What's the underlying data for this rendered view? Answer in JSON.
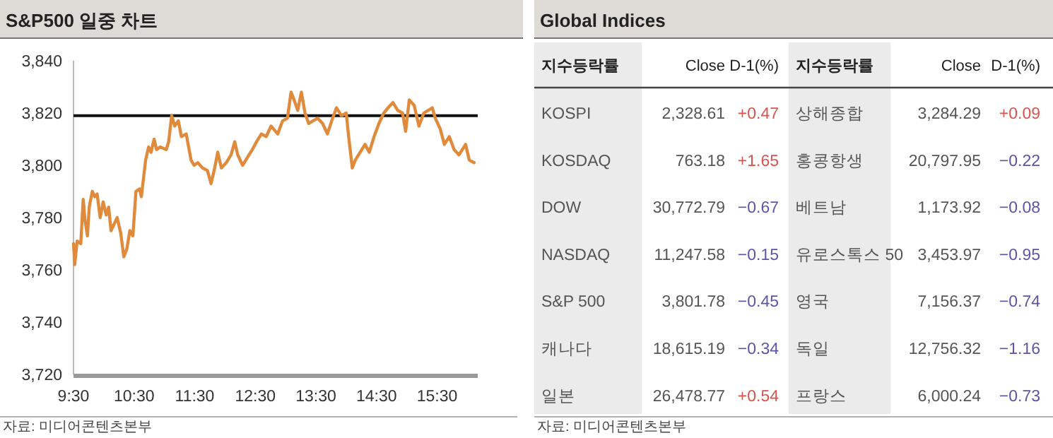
{
  "chart_data": [
    {
      "type": "line",
      "title": "S&P500 일중 차트",
      "x": [
        9.5,
        9.52,
        9.56,
        9.62,
        9.66,
        9.69,
        9.73,
        9.76,
        9.81,
        9.85,
        9.89,
        9.94,
        9.99,
        10.04,
        10.08,
        10.12,
        10.16,
        10.22,
        10.28,
        10.33,
        10.38,
        10.43,
        10.48,
        10.53,
        10.59,
        10.62,
        10.69,
        10.74,
        10.78,
        10.83,
        10.87,
        10.93,
        11.03,
        11.07,
        11.12,
        11.17,
        11.23,
        11.28,
        11.36,
        11.44,
        11.49,
        11.55,
        11.63,
        11.71,
        11.77,
        11.83,
        11.88,
        11.94,
        12.02,
        12.1,
        12.16,
        12.21,
        12.29,
        12.37,
        12.45,
        12.52,
        12.6,
        12.68,
        12.76,
        12.87,
        12.95,
        13.03,
        13.09,
        13.14,
        13.2,
        13.26,
        13.32,
        13.38,
        13.45,
        13.53,
        13.61,
        13.69,
        13.76,
        13.84,
        13.92,
        14.0,
        14.04,
        14.1,
        14.15,
        14.23,
        14.31,
        14.38,
        14.46,
        14.54,
        14.62,
        14.69,
        14.77,
        14.85,
        14.93,
        14.98,
        15.04,
        15.12,
        15.2,
        15.28,
        15.35,
        15.42,
        15.47,
        15.55,
        15.62,
        15.7,
        15.78,
        15.86,
        15.97,
        16.03,
        16.11
      ],
      "series": [
        {
          "color": "#e08a3c",
          "values": [
            3770,
            3762,
            3771,
            3770,
            3787,
            3779,
            3773,
            3784,
            3790,
            3788,
            3789,
            3780,
            3786,
            3781,
            3784,
            3775,
            3777,
            3780,
            3774,
            3765,
            3768,
            3775,
            3773,
            3790,
            3791,
            3788,
            3802,
            3807,
            3805,
            3810,
            3806,
            3807,
            3806,
            3809,
            3819,
            3815,
            3817,
            3811,
            3812,
            3802,
            3800,
            3801,
            3799,
            3798,
            3793,
            3799,
            3805,
            3799,
            3801,
            3804,
            3809,
            3804,
            3800,
            3803,
            3806,
            3809,
            3812,
            3811,
            3815,
            3812,
            3817,
            3818,
            3828,
            3825,
            3821,
            3828,
            3820,
            3816,
            3817,
            3818,
            3816,
            3812,
            3817,
            3822,
            3819,
            3820,
            3811,
            3799,
            3802,
            3805,
            3808,
            3805,
            3811,
            3816,
            3820,
            3822,
            3824,
            3821,
            3820,
            3813,
            3825,
            3823,
            3815,
            3820,
            3821,
            3822,
            3818,
            3814,
            3808,
            3811,
            3806,
            3804,
            3808,
            3802,
            3801
          ]
        }
      ],
      "xlim": [
        9.5,
        16.17
      ],
      "xticks": [
        {
          "value": 9.5,
          "label": "9:30"
        },
        {
          "value": 10.5,
          "label": "10:30"
        },
        {
          "value": 11.5,
          "label": "11:30"
        },
        {
          "value": 12.5,
          "label": "12:30"
        },
        {
          "value": 13.5,
          "label": "13:30"
        },
        {
          "value": 14.5,
          "label": "14:30"
        },
        {
          "value": 15.5,
          "label": "15:30"
        }
      ],
      "ylim": [
        3720,
        3840
      ],
      "yticks": [
        {
          "value": 3720,
          "label": "3,720"
        },
        {
          "value": 3740,
          "label": "3,740"
        },
        {
          "value": 3760,
          "label": "3,760"
        },
        {
          "value": 3780,
          "label": "3,780"
        },
        {
          "value": 3800,
          "label": "3,800"
        },
        {
          "value": 3820,
          "label": "3,820"
        },
        {
          "value": 3840,
          "label": "3,840"
        }
      ],
      "ref_lines": [
        {
          "axis": "y",
          "value": 3819,
          "color": "#111111"
        }
      ],
      "annotations": [
        "자료: 미디어콘텐츠본부"
      ]
    },
    {
      "type": "other",
      "title": "Global Indices",
      "categories": [
        "지수등락률",
        "Close",
        "D-1(%)",
        "지수등락률",
        "Close",
        "D-1(%)"
      ],
      "cell_labels": [
        [
          "KOSPI",
          "2,328.61",
          "+0.47",
          "상해종합",
          "3,284.29",
          "+0.09"
        ],
        [
          "KOSDAQ",
          "763.18",
          "+1.65",
          "홍콩항생",
          "20,797.95",
          "−0.22"
        ],
        [
          "DOW",
          "30,772.79",
          "−0.67",
          "베트남",
          "1,173.92",
          "−0.08"
        ],
        [
          "NASDAQ",
          "11,247.58",
          "−0.15",
          "유로스톡스 50",
          "3,453.97",
          "−0.95"
        ],
        [
          "S&P 500",
          "3,801.78",
          "−0.45",
          "영국",
          "7,156.37",
          "−0.74"
        ],
        [
          "캐나다",
          "18,615.19",
          "−0.34",
          "독일",
          "12,756.32",
          "−1.16"
        ],
        [
          "일본",
          "26,478.77",
          "+0.54",
          "프랑스",
          "6,000.24",
          "−0.73"
        ]
      ],
      "colors": [
        [
          "#555555",
          "#555555",
          "#d9534f",
          "#555555",
          "#555555",
          "#d9534f"
        ],
        [
          "#555555",
          "#555555",
          "#d9534f",
          "#555555",
          "#555555",
          "#5b55a8"
        ],
        [
          "#555555",
          "#555555",
          "#5b55a8",
          "#555555",
          "#555555",
          "#5b55a8"
        ],
        [
          "#555555",
          "#555555",
          "#5b55a8",
          "#555555",
          "#555555",
          "#5b55a8"
        ],
        [
          "#555555",
          "#555555",
          "#5b55a8",
          "#555555",
          "#555555",
          "#5b55a8"
        ],
        [
          "#555555",
          "#555555",
          "#5b55a8",
          "#555555",
          "#555555",
          "#5b55a8"
        ],
        [
          "#555555",
          "#555555",
          "#d9534f",
          "#555555",
          "#555555",
          "#5b55a8"
        ]
      ],
      "annotations": [
        "자료: 미디어콘텐츠본부"
      ]
    }
  ]
}
